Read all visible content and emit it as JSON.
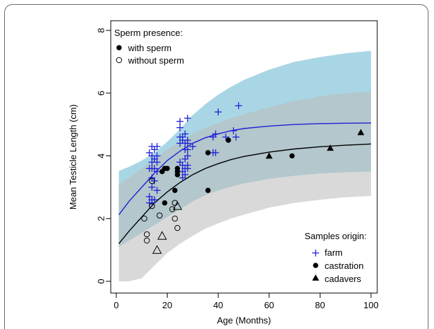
{
  "chart_data": {
    "type": "scatter",
    "xlabel": "Age (Months)",
    "ylabel": "Mean Testicle Length (cm)",
    "xlim": [
      0,
      100
    ],
    "ylim": [
      0,
      8
    ],
    "x_ticks": [
      0,
      20,
      40,
      60,
      80,
      100
    ],
    "y_ticks": [
      0,
      2,
      4,
      6,
      8
    ],
    "grid": false,
    "legend_sperm": {
      "title": "Sperm presence:",
      "position": "top-left",
      "entries": [
        {
          "label": "with sperm",
          "marker": "filled-circle"
        },
        {
          "label": "without sperm",
          "marker": "open-circle"
        }
      ]
    },
    "legend_origin": {
      "title": "Samples origin:",
      "position": "bottom-right",
      "entries": [
        {
          "label": "farm",
          "marker": "plus",
          "color": "#1f1fd6"
        },
        {
          "label": "castration",
          "marker": "filled-circle",
          "color": "#000000"
        },
        {
          "label": "cadavers",
          "marker": "filled-triangle",
          "color": "#000000"
        }
      ]
    },
    "colors": {
      "farm": "#1f1fd6",
      "farm_band": "#a9d6e5",
      "overall_band": "#d9d9d9",
      "overlap_band": "#b3c7cc"
    },
    "curves": [
      {
        "name": "farm",
        "color": "#1f1fd6",
        "x": [
          1,
          5,
          10,
          15,
          20,
          25,
          30,
          35,
          40,
          45,
          50,
          60,
          70,
          80,
          90,
          100
        ],
        "y": [
          2.12,
          2.55,
          3.0,
          3.45,
          3.85,
          4.15,
          4.4,
          4.58,
          4.7,
          4.8,
          4.87,
          4.95,
          5.0,
          5.03,
          5.04,
          5.05
        ],
        "band_upper": [
          3.52,
          3.65,
          3.85,
          4.1,
          4.45,
          4.85,
          5.3,
          5.65,
          5.95,
          6.2,
          6.42,
          6.75,
          7.0,
          7.15,
          7.27,
          7.35
        ],
        "band_lower": [
          1.1,
          1.3,
          1.55,
          1.8,
          2.05,
          2.3,
          2.55,
          2.75,
          2.9,
          3.02,
          3.12,
          3.27,
          3.37,
          3.44,
          3.48,
          3.5
        ]
      },
      {
        "name": "overall",
        "color": "#000000",
        "x": [
          1,
          5,
          10,
          15,
          20,
          25,
          30,
          35,
          40,
          45,
          50,
          60,
          70,
          80,
          90,
          100
        ],
        "y": [
          1.2,
          1.6,
          2.05,
          2.5,
          2.85,
          3.15,
          3.4,
          3.6,
          3.75,
          3.88,
          3.98,
          4.12,
          4.22,
          4.29,
          4.34,
          4.38
        ],
        "band_upper": [
          3.1,
          3.3,
          3.6,
          3.9,
          4.2,
          4.45,
          4.7,
          4.9,
          5.05,
          5.2,
          5.32,
          5.55,
          5.75,
          5.9,
          6.0,
          6.05
        ],
        "band_lower": [
          0.0,
          0.0,
          0.1,
          0.5,
          0.9,
          1.2,
          1.45,
          1.68,
          1.85,
          2.0,
          2.12,
          2.35,
          2.5,
          2.6,
          2.68,
          2.72
        ]
      }
    ],
    "series": [
      {
        "name": "farm",
        "marker": "plus",
        "points": [
          [
            13,
            2.5
          ],
          [
            13,
            2.7
          ],
          [
            13,
            3.6
          ],
          [
            13,
            4.1
          ],
          [
            14,
            2.5
          ],
          [
            14,
            2.6
          ],
          [
            14,
            3.0
          ],
          [
            14,
            3.3
          ],
          [
            14,
            3.6
          ],
          [
            14,
            3.8
          ],
          [
            14,
            4.0
          ],
          [
            14,
            4.3
          ],
          [
            15,
            2.6
          ],
          [
            15,
            3.2
          ],
          [
            15,
            3.6
          ],
          [
            15,
            3.9
          ],
          [
            15,
            4.2
          ],
          [
            16,
            2.9
          ],
          [
            16,
            3.5
          ],
          [
            16,
            3.8
          ],
          [
            16,
            4.0
          ],
          [
            16,
            4.3
          ],
          [
            25,
            5.1
          ],
          [
            25,
            4.9
          ],
          [
            25,
            4.6
          ],
          [
            25,
            4.4
          ],
          [
            25,
            3.8
          ],
          [
            26,
            4.6
          ],
          [
            26,
            3.5
          ],
          [
            26,
            3.3
          ],
          [
            26,
            3.7
          ],
          [
            26,
            4.5
          ],
          [
            27,
            4.7
          ],
          [
            27,
            4.4
          ],
          [
            27,
            4.2
          ],
          [
            27,
            3.9
          ],
          [
            27,
            3.6
          ],
          [
            27,
            3.4
          ],
          [
            28,
            4.5
          ],
          [
            28,
            4.2
          ],
          [
            28,
            4.0
          ],
          [
            28,
            3.7
          ],
          [
            28,
            5.2
          ],
          [
            28,
            3.6
          ],
          [
            28,
            4.4
          ],
          [
            30,
            4.3
          ],
          [
            38,
            4.1
          ],
          [
            38,
            4.6
          ],
          [
            39,
            4.7
          ],
          [
            39,
            4.1
          ],
          [
            40,
            5.4
          ],
          [
            43,
            4.6
          ],
          [
            46,
            4.8
          ],
          [
            47,
            4.6
          ],
          [
            48,
            5.6
          ]
        ]
      },
      {
        "name": "castration with sperm",
        "marker": "filled-circle",
        "points": [
          [
            18,
            3.5
          ],
          [
            19,
            3.6
          ],
          [
            20,
            3.6
          ],
          [
            19,
            2.5
          ],
          [
            23,
            2.9
          ],
          [
            24,
            3.6
          ],
          [
            24,
            3.5
          ],
          [
            24,
            3.4
          ],
          [
            36,
            4.1
          ],
          [
            36,
            2.9
          ],
          [
            44,
            4.5
          ],
          [
            69,
            4.0
          ]
        ]
      },
      {
        "name": "castration without sperm",
        "marker": "open-circle",
        "points": [
          [
            12,
            1.5
          ],
          [
            12,
            1.3
          ],
          [
            11,
            2.0
          ],
          [
            14,
            2.4
          ],
          [
            14,
            3.2
          ],
          [
            17,
            2.1
          ],
          [
            22,
            2.3
          ],
          [
            23,
            2.5
          ],
          [
            23,
            2.0
          ],
          [
            24,
            1.7
          ]
        ]
      },
      {
        "name": "cadavers with sperm",
        "marker": "filled-triangle",
        "points": [
          [
            60,
            4.0
          ],
          [
            84,
            4.25
          ],
          [
            96,
            4.75
          ]
        ]
      },
      {
        "name": "cadavers without sperm",
        "marker": "open-triangle",
        "points": [
          [
            16,
            1.0
          ],
          [
            18,
            1.45
          ],
          [
            24,
            2.4
          ]
        ]
      }
    ]
  }
}
